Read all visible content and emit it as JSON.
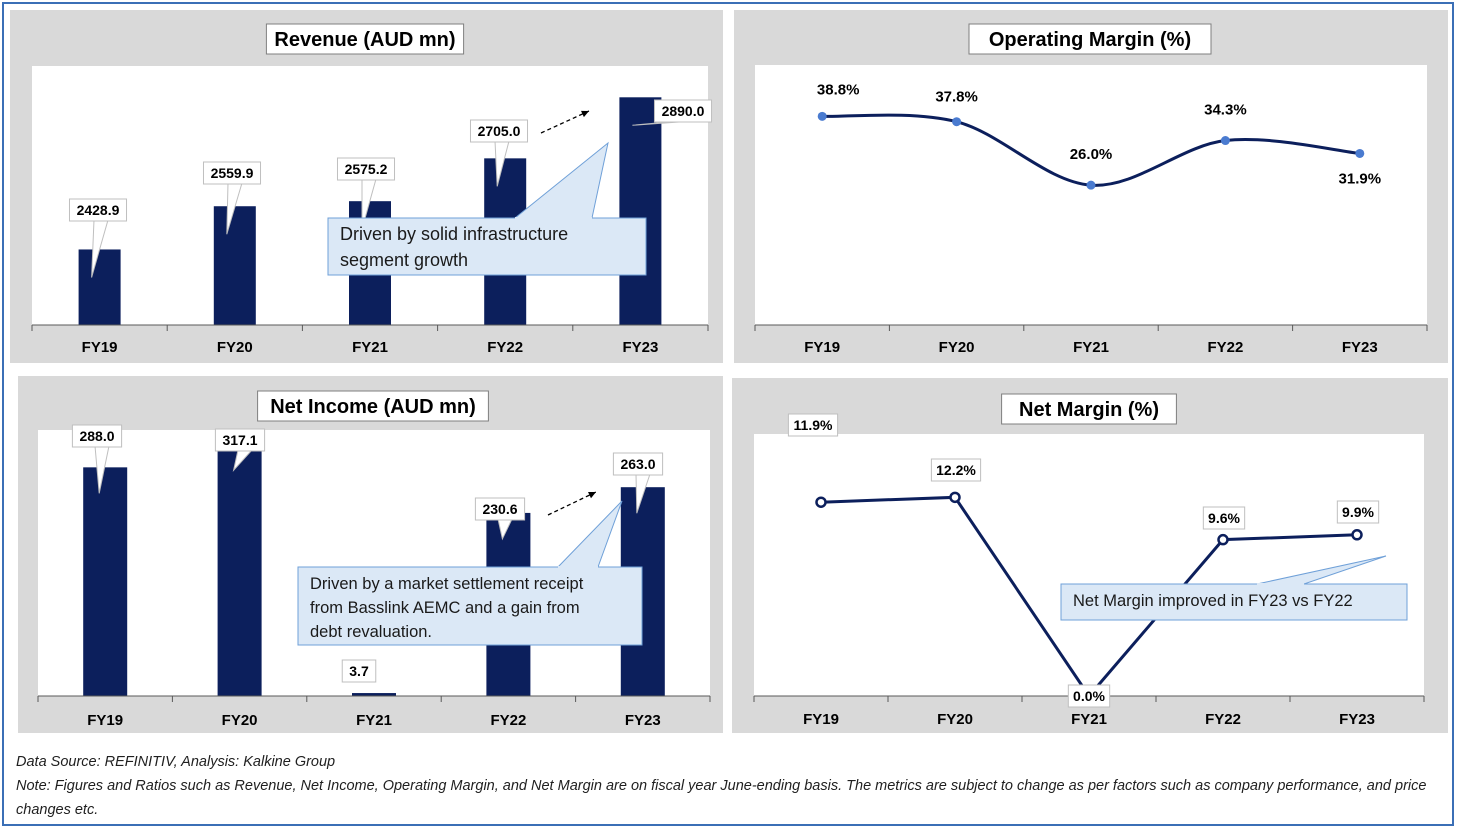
{
  "colors": {
    "bar": "#0c1f5c",
    "line": "#0c1f5c",
    "marker": "#4a7bd0",
    "callout_fill": "#dbe8f6",
    "callout_border": "#6fa0d8",
    "panel_bg": "#d9d9d9",
    "plot_bg": "#ffffff",
    "frame": "#3b6fb6"
  },
  "chart_data": [
    {
      "id": "revenue",
      "type": "bar",
      "title": "Revenue (AUD mn)",
      "categories": [
        "FY19",
        "FY20",
        "FY21",
        "FY22",
        "FY23"
      ],
      "values": [
        2428.9,
        2559.9,
        2575.2,
        2705.0,
        2890.0
      ],
      "labels": [
        "2428.9",
        "2559.9",
        "2575.2",
        "2705.0",
        "2890.0"
      ],
      "ylim": [
        2200,
        2900
      ],
      "grid": false,
      "legend": "none",
      "annotation": {
        "text_lines": [
          "Driven by solid infrastructure",
          "segment growth"
        ]
      }
    },
    {
      "id": "operating_margin",
      "type": "line",
      "title": "Operating Margin (%)",
      "categories": [
        "FY19",
        "FY20",
        "FY21",
        "FY22",
        "FY23"
      ],
      "values": [
        38.8,
        37.8,
        26.0,
        34.3,
        31.9
      ],
      "labels": [
        "38.8%",
        "37.8%",
        "26.0%",
        "34.3%",
        "31.9%"
      ],
      "ylim": [
        0,
        45
      ],
      "grid": false,
      "legend": "none"
    },
    {
      "id": "net_income",
      "type": "bar",
      "title": "Net Income (AUD mn)",
      "categories": [
        "FY19",
        "FY20",
        "FY21",
        "FY22",
        "FY23"
      ],
      "values": [
        288.0,
        317.1,
        3.7,
        230.6,
        263.0
      ],
      "labels": [
        "288.0",
        "317.1",
        "3.7",
        "230.6",
        "263.0"
      ],
      "ylim": [
        0,
        330
      ],
      "grid": false,
      "legend": "none",
      "annotation": {
        "text_lines": [
          " Driven by a market settlement receipt",
          "from Basslink AEMC and a gain from",
          "debt revaluation."
        ]
      }
    },
    {
      "id": "net_margin",
      "type": "line",
      "title": "Net Margin (%)",
      "categories": [
        "FY19",
        "FY20",
        "FY21",
        "FY22",
        "FY23"
      ],
      "values": [
        11.9,
        12.2,
        0.0,
        9.6,
        9.9
      ],
      "labels": [
        "11.9%",
        "12.2%",
        "0.0%",
        "9.6%",
        "9.9%"
      ],
      "ylim": [
        0,
        14
      ],
      "grid": false,
      "legend": "none",
      "annotation": {
        "text_lines": [
          "Net Margin improved in FY23 vs FY22"
        ]
      }
    }
  ],
  "footer": {
    "source": "Data Source: REFINITIV, Analysis: Kalkine Group",
    "note": "Note: Figures and Ratios such as Revenue, Net Income, Operating Margin, and Net Margin are on fiscal year June-ending basis. The metrics are subject to change as per factors such as company performance, and price changes etc."
  }
}
